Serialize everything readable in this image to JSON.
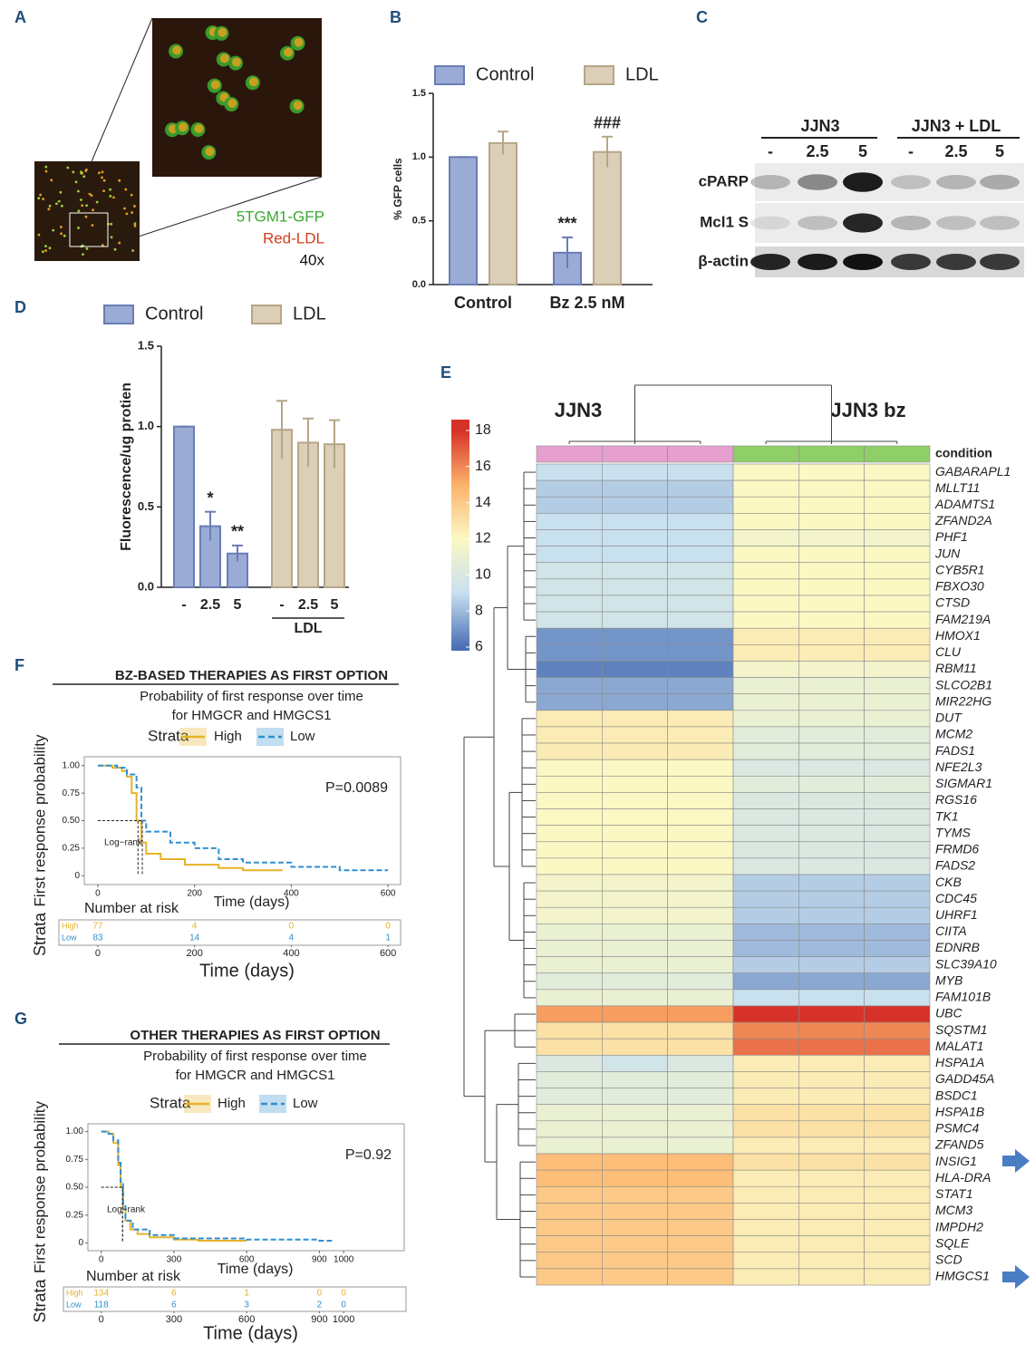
{
  "panel_labels": [
    "A",
    "B",
    "C",
    "D",
    "E",
    "F",
    "G"
  ],
  "microscopy": {
    "labels": [
      "5TGM1-GFP",
      "Red-LDL",
      "40x"
    ]
  },
  "western_blot": {
    "groups": [
      "JJN3",
      "JJN3 + LDL"
    ],
    "lanes": [
      "-",
      "2.5",
      "5",
      "-",
      "2.5",
      "5"
    ],
    "rows": [
      "cPARP",
      "Mcl1 S",
      "β-actin"
    ]
  },
  "chart_data": [
    {
      "type": "bar",
      "y_label": "% GFP cells",
      "categories": [
        "Control",
        "Bz 2.5 nM"
      ],
      "series": [
        {
          "name": "Control",
          "color": "#9aabd6",
          "edgecolor": "#6a7db3",
          "values": [
            1.0,
            0.25
          ],
          "errors": [
            0.0,
            0.12
          ],
          "significance": [
            null,
            "***"
          ]
        },
        {
          "name": "LDL",
          "color": "#dccfb8",
          "edgecolor": "#b5a688",
          "values": [
            1.11,
            1.04
          ],
          "errors": [
            0.09,
            0.12
          ],
          "significance": [
            null,
            "###"
          ]
        }
      ],
      "ylim": [
        0,
        1.5
      ],
      "yticks": [
        {
          "value": 0,
          "label": "0.0"
        },
        {
          "value": 0.5,
          "label": "0.5"
        },
        {
          "value": 1,
          "label": "1.0"
        },
        {
          "value": 1.5,
          "label": "1.5"
        }
      ]
    },
    {
      "type": "bar",
      "y_label": "Fluorescence/ug protien",
      "categories": [
        "-",
        "2.5",
        "5",
        "-",
        "2.5",
        "5"
      ],
      "group_label": "LDL",
      "series": [
        {
          "name": "Control",
          "color": "#9aabd6",
          "edgecolor": "#6a7db3",
          "values": [
            1.0,
            0.38,
            0.21,
            null,
            null,
            null
          ],
          "errors": [
            0.0,
            0.09,
            0.05,
            null,
            null,
            null
          ],
          "significance": [
            null,
            "*",
            "**",
            null,
            null,
            null
          ]
        },
        {
          "name": "LDL",
          "color": "#dccfb8",
          "edgecolor": "#b5a688",
          "values": [
            null,
            null,
            null,
            0.98,
            0.9,
            0.89
          ],
          "errors": [
            null,
            null,
            null,
            0.18,
            0.15,
            0.15
          ],
          "significance": [
            null,
            null,
            null,
            null,
            null,
            null
          ]
        }
      ],
      "ylim": [
        0,
        1.5
      ],
      "yticks": [
        {
          "value": 0,
          "label": "0.0"
        },
        {
          "value": 0.5,
          "label": "0.5"
        },
        {
          "value": 1,
          "label": "1.0"
        },
        {
          "value": 1.5,
          "label": "1.5"
        }
      ]
    },
    {
      "type": "heatmap",
      "column_groups": [
        "JJN3",
        "JJN3 bz"
      ],
      "group_colors": [
        "#e6a0d0",
        "#8fcf68"
      ],
      "annotation_label": "condition",
      "colorscale": [
        "#4a6fb5",
        "#c9e0ef",
        "#fbf8c4",
        "#fcb26a",
        "#d6322a"
      ],
      "colorbar": {
        "lim": [
          5.8,
          18.6
        ],
        "ticks": [
          6,
          8,
          10,
          12,
          14,
          16,
          18
        ]
      },
      "rows": [
        "GABARAPL1",
        "MLLT11",
        "ADAMTS1",
        "ZFAND2A",
        "PHF1",
        "JUN",
        "CYB5R1",
        "FBXO30",
        "CTSD",
        "FAM219A",
        "HMOX1",
        "CLU",
        "RBM11",
        "SLCO2B1",
        "MIR22HG",
        "DUT",
        "MCM2",
        "FADS1",
        "NFE2L3",
        "SIGMAR1",
        "RGS16",
        "TK1",
        "TYMS",
        "FRMD6",
        "FADS2",
        "CKB",
        "CDC45",
        "UHRF1",
        "CIITA",
        "EDNRB",
        "SLC39A10",
        "MYB",
        "FAM101B",
        "UBC",
        "SQSTM1",
        "MALAT1",
        "HSPA1A",
        "GADD45A",
        "BSDC1",
        "HSPA1B",
        "PSMC4",
        "ZFAND5",
        "INSIG1",
        "HLA-DRA",
        "STAT1",
        "MCM3",
        "IMPDH2",
        "SQLE",
        "SCD",
        "HMGCS1"
      ],
      "values": [
        [
          9,
          9,
          9,
          12,
          12,
          12
        ],
        [
          8.5,
          8.5,
          8.5,
          12,
          12,
          12
        ],
        [
          8.5,
          8.5,
          8.5,
          12,
          12,
          12
        ],
        [
          9,
          9,
          9,
          12,
          12,
          12
        ],
        [
          9,
          9,
          9,
          11.5,
          11.5,
          11.5
        ],
        [
          9,
          9,
          9,
          12,
          12,
          12
        ],
        [
          9.5,
          9.5,
          9.5,
          12,
          12,
          12
        ],
        [
          9.5,
          9.5,
          9.5,
          12,
          12,
          12
        ],
        [
          9.5,
          9.5,
          9.5,
          12,
          12,
          12
        ],
        [
          9.5,
          9.5,
          9.5,
          12,
          12,
          12
        ],
        [
          7,
          7,
          7,
          12.5,
          12.5,
          12.5
        ],
        [
          7,
          7,
          7,
          12.5,
          12.5,
          12.5
        ],
        [
          6.5,
          6.5,
          6.5,
          11.5,
          11.5,
          11.5
        ],
        [
          7.5,
          7.5,
          7.5,
          11,
          11,
          11
        ],
        [
          7.5,
          7.5,
          7.5,
          11,
          11,
          11
        ],
        [
          12.5,
          12.5,
          12.5,
          11,
          11,
          11
        ],
        [
          12.5,
          12.5,
          12.5,
          10.5,
          10.5,
          10.5
        ],
        [
          12.5,
          12.5,
          12.5,
          10.5,
          10.5,
          10.5
        ],
        [
          12,
          12,
          12,
          10,
          10,
          10
        ],
        [
          12,
          12,
          12,
          10.5,
          10.5,
          10.5
        ],
        [
          12,
          12,
          12,
          10,
          10,
          10
        ],
        [
          12,
          12,
          12,
          10,
          10,
          10
        ],
        [
          12,
          12,
          12,
          10,
          10,
          10
        ],
        [
          12,
          12,
          12,
          10,
          10,
          10
        ],
        [
          12,
          12,
          12,
          10,
          10,
          10
        ],
        [
          11.5,
          11.5,
          11.5,
          8.5,
          8.5,
          8.5
        ],
        [
          11.5,
          11.5,
          11.5,
          8.5,
          8.5,
          8.5
        ],
        [
          11.5,
          11.5,
          11.5,
          8.5,
          8.5,
          8.5
        ],
        [
          11,
          11,
          11,
          8,
          8,
          8
        ],
        [
          11,
          11,
          11,
          8,
          8,
          8
        ],
        [
          11,
          11,
          11,
          8.5,
          8.5,
          8.5
        ],
        [
          10.5,
          10.5,
          10.5,
          7.5,
          7.5,
          7.5
        ],
        [
          11,
          11,
          11,
          9,
          9,
          9
        ],
        [
          15.5,
          15.5,
          15.5,
          18,
          18,
          18
        ],
        [
          13,
          13,
          13,
          16,
          16,
          16
        ],
        [
          13,
          13,
          13,
          16.5,
          16.5,
          16.5
        ],
        [
          10,
          9.5,
          10,
          12.5,
          12.5,
          12.5
        ],
        [
          10.5,
          10.5,
          10.5,
          12.5,
          12.5,
          12.5
        ],
        [
          10.5,
          10.5,
          10.5,
          12.5,
          12.5,
          12.5
        ],
        [
          11,
          11,
          11,
          13,
          13,
          13
        ],
        [
          11,
          11,
          11,
          13,
          13,
          13
        ],
        [
          11,
          11,
          11,
          12.5,
          12.5,
          12.5
        ],
        [
          14.5,
          14.5,
          14.5,
          13,
          13,
          13
        ],
        [
          14.5,
          14.5,
          14.5,
          12.5,
          12.5,
          12.5
        ],
        [
          14,
          14,
          14,
          12.5,
          12.5,
          12.5
        ],
        [
          14,
          14,
          14,
          12.5,
          12.5,
          12.5
        ],
        [
          14,
          14,
          14,
          12.5,
          12.5,
          12.5
        ],
        [
          14,
          14,
          14,
          12.5,
          12.5,
          12.5
        ],
        [
          14,
          14,
          14,
          12.5,
          12.5,
          12.5
        ],
        [
          14,
          14,
          14,
          12.5,
          12.5,
          12.5
        ]
      ]
    },
    {
      "type": "survival",
      "title": "BZ-BASED THERAPIES AS FIRST OPTION",
      "subtitle": [
        "Probability of first response over time",
        "for HMGCR and HMGCS1"
      ],
      "legend_title": "Strata",
      "p_value": "P=0.0089",
      "test_label": "Log−rank",
      "y_label": "First response probability",
      "x_label": "Time (days)",
      "series": [
        {
          "name": "High",
          "color": "#e5b32a",
          "line_style": "solid",
          "x": [
            0,
            30,
            50,
            60,
            70,
            80,
            90,
            100,
            130,
            180,
            250,
            300,
            380
          ],
          "values": [
            1,
            0.98,
            0.95,
            0.9,
            0.75,
            0.5,
            0.3,
            0.2,
            0.15,
            0.1,
            0.07,
            0.05,
            0.04
          ],
          "median": 83,
          "at_risk": [
            77,
            4,
            0,
            0
          ]
        },
        {
          "name": "Low",
          "color": "#2f8fd0",
          "line_style": "dashed",
          "x": [
            0,
            40,
            60,
            80,
            90,
            100,
            150,
            200,
            250,
            300,
            400,
            500,
            600
          ],
          "values": [
            1,
            0.98,
            0.92,
            0.8,
            0.5,
            0.4,
            0.3,
            0.25,
            0.15,
            0.12,
            0.08,
            0.05,
            0.05
          ],
          "median": 92,
          "at_risk": [
            83,
            14,
            4,
            1
          ]
        }
      ],
      "xlim": [
        -28,
        626
      ],
      "ylim": [
        -0.08,
        1.08
      ],
      "xticks": [
        0,
        200,
        400,
        600
      ],
      "yticks": [
        0,
        0.25,
        {
          "value": 0.5,
          "label": "0.50"
        },
        0.75,
        {
          "value": 1,
          "label": "1.00"
        }
      ],
      "risk_table": {
        "title": "Number at risk",
        "y_label": "Strata",
        "x_label": "Time (days)",
        "xticks": [
          0,
          200,
          400,
          600
        ]
      }
    },
    {
      "type": "survival",
      "title": "OTHER THERAPIES AS FIRST OPTION",
      "subtitle": [
        "Probability of first response over time",
        "for HMGCR and HMGCS1"
      ],
      "legend_title": "Strata",
      "p_value": "P=0.92",
      "test_label": "Log−rank",
      "y_label": "First response probability",
      "x_label": "Time (days)",
      "series": [
        {
          "name": "High",
          "color": "#e5b32a",
          "line_style": "solid",
          "x": [
            0,
            30,
            50,
            70,
            80,
            90,
            100,
            120,
            150,
            200,
            300,
            400,
            600
          ],
          "values": [
            1,
            0.98,
            0.9,
            0.7,
            0.5,
            0.3,
            0.2,
            0.12,
            0.08,
            0.05,
            0.03,
            0.02,
            0.02
          ],
          "median": 88,
          "at_risk": [
            134,
            6,
            1,
            0,
            0
          ]
        },
        {
          "name": "Low",
          "color": "#2f8fd0",
          "line_style": "dashed",
          "x": [
            0,
            30,
            50,
            70,
            80,
            90,
            100,
            130,
            200,
            300,
            600,
            900,
            960
          ],
          "values": [
            1,
            0.98,
            0.92,
            0.72,
            0.55,
            0.35,
            0.2,
            0.12,
            0.07,
            0.04,
            0.03,
            0.02,
            0.02
          ],
          "median": 88,
          "at_risk": [
            118,
            6,
            3,
            2,
            0
          ]
        }
      ],
      "xlim": [
        -55,
        1250
      ],
      "ylim": [
        -0.07,
        1.07
      ],
      "xticks": [
        0,
        300,
        600,
        900,
        1000
      ],
      "yticks": [
        0,
        0.25,
        {
          "value": 0.5,
          "label": "0.50"
        },
        0.75,
        {
          "value": 1,
          "label": "1.00"
        }
      ],
      "risk_table": {
        "title": "Number at risk",
        "y_label": "Strata",
        "x_label": "Time (days)",
        "xticks": [
          0,
          300,
          600,
          900,
          1000
        ]
      }
    }
  ]
}
